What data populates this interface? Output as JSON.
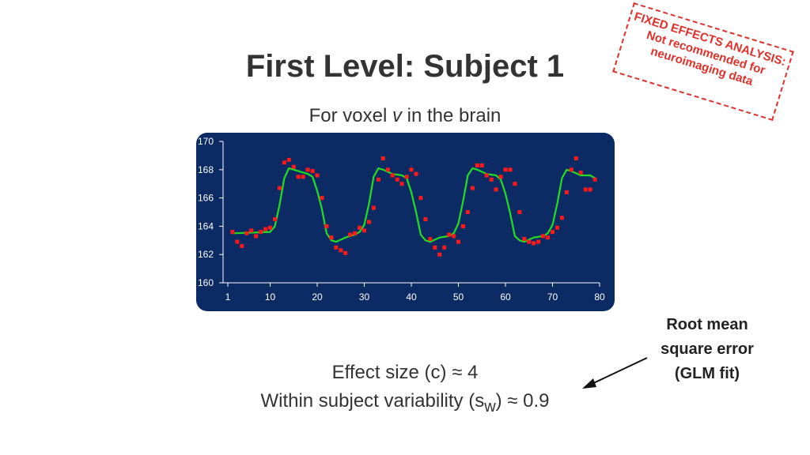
{
  "slide": {
    "title": "First Level: Subject 1",
    "subtitle_prefix": "For voxel ",
    "subtitle_var": "v",
    "subtitle_suffix": " in the brain"
  },
  "stamp": {
    "line1": "FIXED EFFECTS ANALYSIS:",
    "line2": "Not recommended for",
    "line3": "neuroimaging data",
    "color": "#e0302a"
  },
  "annotation": {
    "line1": "Root mean",
    "line2": "square error",
    "line3": "(GLM fit)"
  },
  "stats": {
    "effect": "Effect size (c) ≈ 4",
    "within_prefix": "Within subject variability (s",
    "within_sub": "w",
    "within_suffix": ") ≈ 0.9"
  },
  "chart_data": {
    "type": "scatter",
    "title": "",
    "xlabel": "",
    "ylabel": "",
    "xlim": [
      1,
      80
    ],
    "ylim": [
      160,
      170
    ],
    "xticks": [
      1,
      10,
      20,
      30,
      40,
      50,
      60,
      70,
      80
    ],
    "yticks": [
      160,
      162,
      164,
      166,
      168,
      170
    ],
    "grid": false,
    "background_color": "#0c2a63",
    "axis_color": "#ffffff",
    "point_color": "#ff1a1a",
    "line_color": "#22dd22",
    "series": [
      {
        "type": "points",
        "x": [
          2,
          3,
          4,
          5,
          6,
          7,
          8,
          9,
          10,
          11,
          12,
          13,
          14,
          15,
          16,
          17,
          18,
          19,
          20,
          21,
          22,
          23,
          24,
          25,
          26,
          27,
          28,
          29,
          30,
          31,
          32,
          33,
          34,
          35,
          36,
          37,
          38,
          39,
          40,
          41,
          42,
          43,
          44,
          45,
          46,
          47,
          48,
          49,
          50,
          51,
          52,
          53,
          54,
          55,
          56,
          57,
          58,
          59,
          60,
          61,
          62,
          63,
          64,
          65,
          66,
          67,
          68,
          69,
          70,
          71,
          72,
          73,
          74,
          75,
          76,
          77,
          78,
          79
        ],
        "y": [
          163.6,
          162.9,
          162.6,
          163.5,
          163.7,
          163.3,
          163.6,
          163.8,
          163.9,
          164.5,
          166.7,
          168.5,
          168.7,
          168.2,
          167.5,
          167.5,
          168.0,
          167.9,
          167.6,
          166.0,
          164.0,
          163.2,
          162.5,
          162.3,
          162.1,
          163.4,
          163.5,
          163.9,
          163.7,
          164.3,
          165.3,
          167.3,
          168.8,
          168.0,
          167.6,
          167.3,
          167.0,
          167.5,
          168.0,
          167.7,
          166.0,
          164.5,
          163.1,
          162.5,
          162.0,
          162.5,
          163.4,
          163.3,
          162.9,
          164.0,
          165.0,
          166.7,
          168.3,
          168.3,
          167.6,
          167.3,
          166.6,
          167.5,
          168.0,
          168.0,
          167.0,
          165.0,
          163.1,
          162.9,
          162.8,
          162.9,
          163.3,
          163.2,
          163.6,
          163.9,
          164.6,
          166.4,
          168.0,
          168.8,
          167.8,
          166.6,
          166.6,
          167.3
        ]
      },
      {
        "type": "line",
        "x": [
          2,
          10,
          11,
          12,
          13,
          14,
          16,
          18,
          19,
          20,
          21,
          22,
          23,
          24,
          26,
          28,
          29,
          30,
          31,
          32,
          33,
          34,
          36,
          38,
          39,
          40,
          41,
          42,
          43,
          44,
          46,
          48,
          49,
          50,
          51,
          52,
          53,
          54,
          56,
          58,
          59,
          60,
          61,
          62,
          63,
          64,
          66,
          68,
          69,
          70,
          71,
          72,
          73,
          74,
          76,
          78,
          79
        ],
        "y": [
          163.5,
          163.6,
          164.0,
          165.5,
          167.4,
          168.1,
          167.9,
          167.7,
          167.5,
          166.5,
          165.2,
          163.5,
          163.0,
          162.9,
          163.2,
          163.4,
          163.6,
          164.1,
          165.6,
          167.5,
          168.1,
          168.0,
          167.7,
          167.6,
          167.4,
          166.4,
          165.0,
          163.4,
          163.0,
          162.9,
          163.2,
          163.3,
          163.5,
          164.2,
          165.8,
          167.6,
          168.1,
          168.0,
          167.7,
          167.6,
          167.3,
          166.3,
          164.9,
          163.3,
          163.0,
          162.9,
          163.2,
          163.3,
          163.5,
          164.1,
          165.6,
          167.4,
          168.0,
          167.9,
          167.6,
          167.6,
          167.4
        ]
      }
    ]
  }
}
